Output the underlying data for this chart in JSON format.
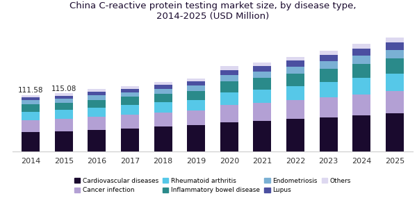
{
  "title": "China C-reactive protein testing market size, by disease type,\n2014-2025 (USD Million)",
  "years": [
    2014,
    2015,
    2016,
    2017,
    2018,
    2019,
    2020,
    2021,
    2022,
    2023,
    2024,
    2025
  ],
  "annotations": {
    "2014": "111.58",
    "2015": "115.08"
  },
  "segments": {
    "Cardiovascular diseases": {
      "color": "#1a0a2e",
      "values": [
        38,
        40,
        43,
        46,
        49,
        52,
        58,
        61,
        64,
        68,
        72,
        76
      ]
    },
    "Cancer infection": {
      "color": "#b3a0d4",
      "values": [
        24,
        25,
        26,
        27,
        28,
        29,
        34,
        35,
        37,
        39,
        41,
        43
      ]
    },
    "Rheumatoid arthritis": {
      "color": "#56c8e8",
      "values": [
        17,
        17,
        18,
        19,
        20,
        21,
        25,
        26,
        28,
        30,
        32,
        34
      ]
    },
    "Inflammatory bowel disease": {
      "color": "#2a8a8a",
      "values": [
        14,
        14,
        15,
        16,
        17,
        18,
        22,
        23,
        24,
        26,
        28,
        30
      ]
    },
    "Endometriosis": {
      "color": "#7ab0d4",
      "values": [
        8,
        8,
        9,
        9,
        10,
        10,
        12,
        13,
        14,
        15,
        16,
        17
      ]
    },
    "Lupus": {
      "color": "#4b4fa0",
      "values": [
        6,
        6,
        7,
        7,
        8,
        8,
        10,
        11,
        12,
        13,
        14,
        15
      ]
    },
    "Others": {
      "color": "#ddd8f0",
      "values": [
        4.58,
        5.08,
        5,
        5,
        5,
        6,
        7,
        7,
        7,
        8,
        9,
        9
      ]
    }
  },
  "background_color": "#ffffff",
  "bar_width": 0.55,
  "ylim": [
    0,
    250
  ],
  "legend_order": [
    "Cardiovascular diseases",
    "Cancer infection",
    "Rheumatoid arthritis",
    "Inflammatory bowel disease",
    "Endometriosis",
    "Lupus",
    "Others"
  ]
}
